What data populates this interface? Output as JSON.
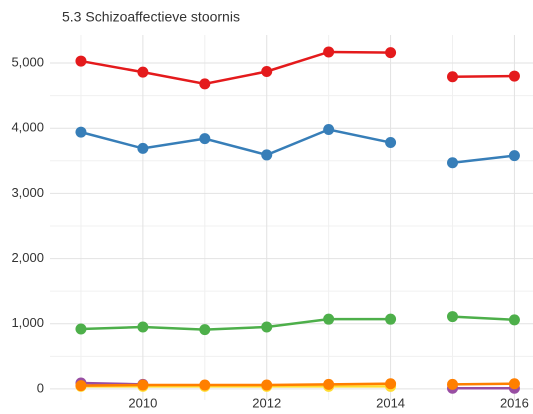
{
  "chart_data": {
    "type": "line",
    "title": "5.3 Schizoaffectieve stoornis",
    "x": [
      2009,
      2010,
      2011,
      2012,
      2013,
      2014,
      2015,
      2016
    ],
    "line_break_after": 2014,
    "series": [
      {
        "color": "#e41a1c",
        "values": [
          5030,
          4860,
          4680,
          4870,
          5170,
          5160,
          4790,
          4800
        ]
      },
      {
        "color": "#377eb8",
        "values": [
          3940,
          3690,
          3840,
          3590,
          3980,
          3780,
          3470,
          3580
        ]
      },
      {
        "color": "#4daf4a",
        "values": [
          920,
          950,
          910,
          950,
          1070,
          1070,
          1110,
          1060
        ]
      },
      {
        "color": "#984ea3",
        "values": [
          90,
          70,
          null,
          null,
          null,
          null,
          10,
          10
        ]
      },
      {
        "color": "#ffdd33",
        "values": [
          40,
          40,
          40,
          40,
          40,
          40,
          null,
          null
        ]
      },
      {
        "color": "#ff7f00",
        "values": [
          50,
          60,
          60,
          60,
          70,
          80,
          70,
          80
        ]
      }
    ],
    "xlim": [
      2008.5,
      2016.3
    ],
    "xticks": [
      2010,
      2012,
      2014,
      2016
    ],
    "x_minor_grid": [
      2009,
      2011,
      2013,
      2015
    ],
    "ylim": [
      -170,
      5430
    ],
    "yticks": [
      0,
      {
        "value": 1000,
        "label": "1,000"
      },
      {
        "value": 2000,
        "label": "2,000"
      },
      {
        "value": 3000,
        "label": "3,000"
      },
      {
        "value": 4000,
        "label": "4,000"
      },
      {
        "value": 5000,
        "label": "5,000"
      }
    ],
    "y_minor_grid": [
      500,
      1500,
      2500,
      3500,
      4500
    ],
    "grid": true
  }
}
